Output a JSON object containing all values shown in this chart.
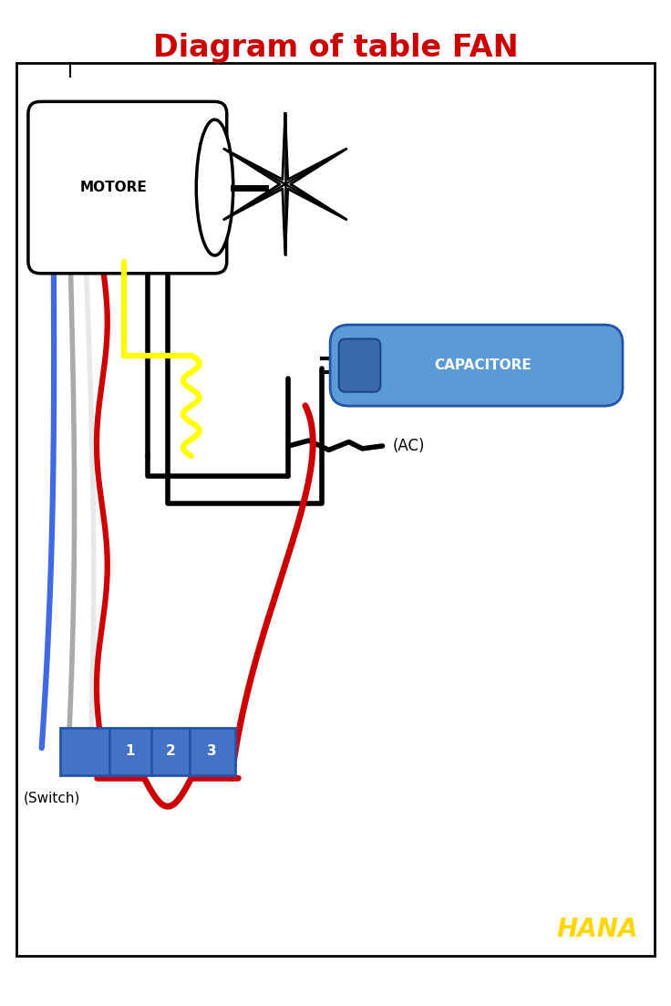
{
  "title": "Diagram of table FAN",
  "title_color": "#CC0000",
  "title_fontsize": 24,
  "bg_color": "#FFFFFF",
  "border_color": "#000000",
  "hana_text": "HANA",
  "hana_color": "#FFD700",
  "motore_label": "MOTORE",
  "capacitore_label": "CAPACITORE",
  "switch_label": "(Switch)",
  "ac_label": "(AC)",
  "switch_numbers": [
    "1",
    "2",
    "3"
  ],
  "switch_color": "#4472C4",
  "capacitor_color": "#5B9BD5",
  "wire_colors": {
    "black": "#000000",
    "red": "#CC0000",
    "yellow": "#FFFF00",
    "blue": "#4169E1",
    "gray": "#AAAAAA",
    "white": "#E8E8E8"
  }
}
